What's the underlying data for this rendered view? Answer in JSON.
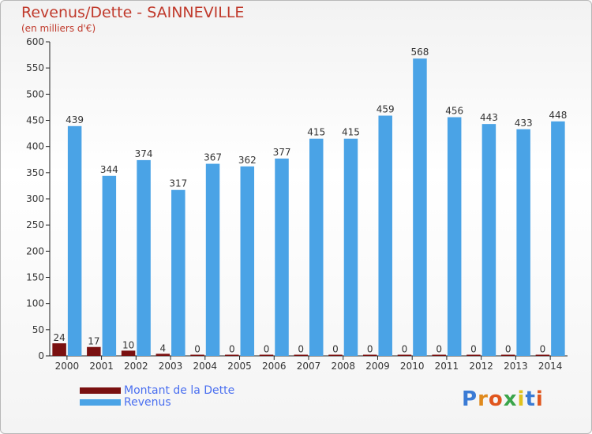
{
  "title": "Revenus/Dette - SAINNEVILLE",
  "subtitle": "(en milliers d'€)",
  "logo": "Proxiti",
  "chart_data": {
    "type": "bar",
    "title": "Revenus/Dette - SAINNEVILLE",
    "ylabel": "(en milliers d'€)",
    "ylim": [
      0,
      600
    ],
    "yticks": [
      0,
      50,
      100,
      150,
      200,
      250,
      300,
      350,
      400,
      450,
      500,
      550,
      600
    ],
    "categories": [
      "2000",
      "2001",
      "2002",
      "2003",
      "2004",
      "2005",
      "2006",
      "2007",
      "2008",
      "2009",
      "2010",
      "2011",
      "2012",
      "2013",
      "2014"
    ],
    "series": [
      {
        "name": "Montant de la Dette",
        "color": "#7a1010",
        "values": [
          24,
          17,
          10,
          4,
          0,
          0,
          0,
          0,
          0,
          0,
          0,
          0,
          0,
          0,
          0
        ]
      },
      {
        "name": "Revenus",
        "color": "#4aa3e6",
        "values": [
          439,
          344,
          374,
          317,
          367,
          362,
          377,
          415,
          415,
          459,
          568,
          456,
          443,
          433,
          448
        ]
      }
    ],
    "legend": "bottom-left",
    "grid": false
  }
}
